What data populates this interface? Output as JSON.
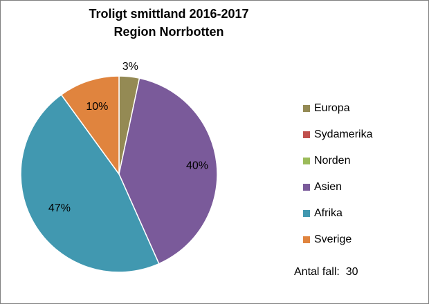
{
  "chart_data": {
    "type": "pie",
    "title": [
      "Troligt smittland 2016-2017",
      "Region Norrbotten"
    ],
    "categories": [
      "Europa",
      "Sydamerika",
      "Norden",
      "Asien",
      "Afrika",
      "Sverige"
    ],
    "values": [
      1,
      0,
      0,
      12,
      14,
      3
    ],
    "percent_labels": [
      "3%",
      "",
      "",
      "40%",
      "47%",
      "10%"
    ],
    "colors": [
      "#948A54",
      "#C0504D",
      "#9BBB59",
      "#7A5A9A",
      "#4198B0",
      "#E0843E"
    ],
    "start_angle_deg": 0,
    "direction": "clockwise",
    "legend_position": "right",
    "annotation": {
      "label": "Antal fall:",
      "value": "30"
    }
  }
}
